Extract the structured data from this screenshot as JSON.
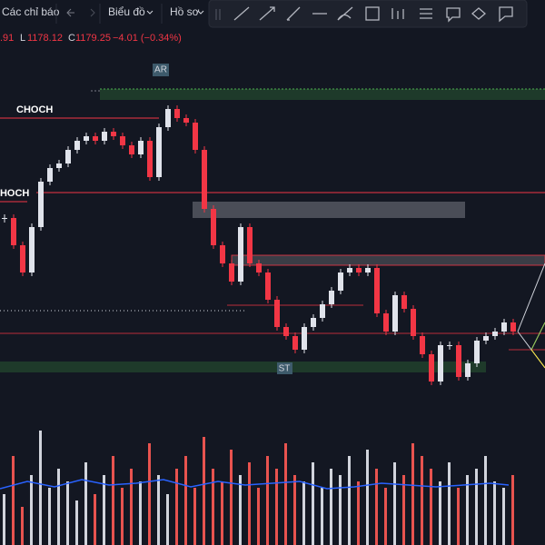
{
  "toolbar": {
    "indicators": "Các chỉ báo",
    "chart": "Biểu đồ",
    "profile": "Hồ sơ"
  },
  "legend": {
    "open_tail": ".91",
    "low_label": "L",
    "low": "1178.12",
    "close_label": "C",
    "close": "1179.25",
    "change": "−4.01 (−0.34%)"
  },
  "annotations": {
    "ar": "AR",
    "choch_top": "CHOCH",
    "choch_left": "CHOCH",
    "st": "ST"
  },
  "chart_data": {
    "type": "candlestick",
    "closes": [
      200,
      170,
      140,
      190,
      240,
      255,
      260,
      275,
      285,
      290,
      285,
      295,
      290,
      280,
      270,
      285,
      245,
      300,
      320,
      310,
      305,
      275,
      210,
      170,
      150,
      130,
      190,
      150,
      140,
      110,
      80,
      70,
      55,
      80,
      90,
      105,
      120,
      140,
      145,
      140,
      145,
      95,
      75,
      115,
      100,
      70,
      50,
      20,
      60,
      60,
      25,
      40,
      65,
      70,
      75,
      85,
      75
    ],
    "ylim": [
      0,
      380
    ],
    "volumes": [
      40,
      70,
      30,
      55,
      90,
      45,
      60,
      50,
      35,
      65,
      40,
      55,
      70,
      45,
      60,
      50,
      80,
      55,
      40,
      60,
      70,
      45,
      85,
      60,
      50,
      75,
      55,
      65,
      45,
      70,
      60,
      80,
      55,
      50,
      65,
      45,
      60,
      55,
      70,
      50,
      75,
      60,
      45,
      65,
      55,
      80,
      70,
      60,
      50,
      65,
      45,
      55,
      60,
      70,
      50,
      45,
      55
    ],
    "volume_ylim": [
      0,
      100
    ]
  }
}
